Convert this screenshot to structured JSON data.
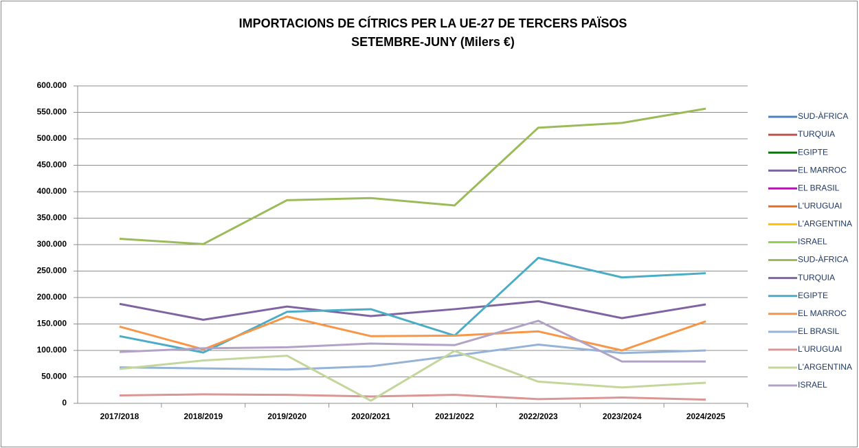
{
  "chart_data": {
    "type": "line",
    "title": "IMPORTACIONS DE CÍTRICS PER LA UE-27  DE TERCERS PAÏSOS",
    "subtitle": "SETEMBRE-JUNY (Milers €)",
    "categories": [
      "2017/2018",
      "2018/2019",
      "2019/2020",
      "2020/2021",
      "2021/2022",
      "2022/2023",
      "2023/2024",
      "2024/2025"
    ],
    "ylim": [
      0,
      600000
    ],
    "yticks": [
      0,
      {
        "value": 50000,
        "label": "50.000"
      },
      {
        "value": 100000,
        "label": "100.000"
      },
      {
        "value": 150000,
        "label": "150.000"
      },
      {
        "value": 200000,
        "label": "200.000"
      },
      {
        "value": 250000,
        "label": "250.000"
      },
      {
        "value": 300000,
        "label": "300.000"
      },
      {
        "value": 350000,
        "label": "350.000"
      },
      {
        "value": 400000,
        "label": "400.000"
      },
      {
        "value": 450000,
        "label": "450.000"
      },
      {
        "value": 500000,
        "label": "500.000"
      },
      {
        "value": 550000,
        "label": "550.000"
      },
      {
        "value": 600000,
        "label": "600.000"
      }
    ],
    "grid": true,
    "legend": "right",
    "series": [
      {
        "name": "SUD-ÀFRICA",
        "color": "#4f81bd",
        "values": [
          null,
          null,
          null,
          null,
          null,
          null,
          null,
          null
        ]
      },
      {
        "name": "TURQUIA",
        "color": "#c0504d",
        "values": [
          null,
          null,
          null,
          null,
          null,
          null,
          null,
          null
        ]
      },
      {
        "name": "EGIPTE",
        "color": "#007a00",
        "values": [
          null,
          null,
          null,
          null,
          null,
          null,
          null,
          null
        ]
      },
      {
        "name": "EL MARROC",
        "color": "#7f5fa8",
        "values": [
          null,
          null,
          null,
          null,
          null,
          null,
          null,
          null
        ]
      },
      {
        "name": "EL BRASIL",
        "color": "#cc00cc",
        "values": [
          null,
          null,
          null,
          null,
          null,
          null,
          null,
          null
        ]
      },
      {
        "name": "L'URUGUAI",
        "color": "#f26b1d",
        "values": [
          null,
          null,
          null,
          null,
          null,
          null,
          null,
          null
        ]
      },
      {
        "name": "L'ARGENTINA",
        "color": "#ffc000",
        "values": [
          null,
          null,
          null,
          null,
          null,
          null,
          null,
          null
        ]
      },
      {
        "name": "ISRAEL",
        "color": "#92d050",
        "values": [
          null,
          null,
          null,
          null,
          null,
          null,
          null,
          null
        ]
      },
      {
        "name": "SUD-ÀFRICA",
        "color": "#9bbb59",
        "values": [
          311000,
          301000,
          384000,
          388000,
          374000,
          521000,
          530000,
          557000
        ]
      },
      {
        "name": "TURQUIA",
        "color": "#8064a2",
        "values": [
          188000,
          158000,
          183000,
          165000,
          178000,
          193000,
          161000,
          187000
        ]
      },
      {
        "name": "EGIPTE",
        "color": "#4bacc6",
        "values": [
          127000,
          96000,
          173000,
          178000,
          128000,
          275000,
          238000,
          246000
        ]
      },
      {
        "name": "EL MARROC",
        "color": "#f79646",
        "values": [
          145000,
          102000,
          164000,
          127000,
          128000,
          136000,
          100000,
          155000
        ]
      },
      {
        "name": "EL BRASIL",
        "color": "#95b3d7",
        "values": [
          68000,
          66000,
          64000,
          70000,
          90000,
          111000,
          95000,
          100000
        ]
      },
      {
        "name": "L'URUGUAI",
        "color": "#d99694",
        "values": [
          15000,
          17000,
          16000,
          13000,
          16000,
          8000,
          11000,
          7000
        ]
      },
      {
        "name": "L'ARGENTINA",
        "color": "#c3d69b",
        "values": [
          65000,
          81000,
          90000,
          5000,
          99000,
          41000,
          30000,
          39000
        ]
      },
      {
        "name": "ISRAEL",
        "color": "#b3a2c7",
        "values": [
          97000,
          104000,
          106000,
          113000,
          110000,
          156000,
          79000,
          79000
        ]
      }
    ]
  }
}
